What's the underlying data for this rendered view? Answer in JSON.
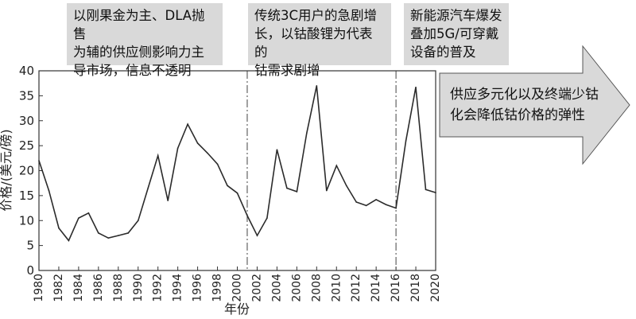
{
  "annotations": {
    "box1": "以刚果金为主、DLA抛售\n为辅的供应侧影响力主\n导市场，信息不透明",
    "box2": "传统3C用户的急剧增\n长，以钴酸锂为代表的\n钴需求剧增",
    "box3": "新能源汽车爆发\n叠加5G/可穿戴\n设备的普及",
    "arrow": "供应多元化以及终端少钴\n化会降低钴价格的弹性"
  },
  "colors": {
    "line": "#2b2b2b",
    "box": "#d9d9d9",
    "arrow_fill": "#d9d9d9"
  },
  "chart_data": {
    "type": "line",
    "xlabel": "年份",
    "ylabel": "价格/(美元/磅)",
    "ylim": [
      0,
      40
    ],
    "xlim": [
      1980,
      2020
    ],
    "y_ticks": [
      "0",
      "5",
      "10",
      "15",
      "20",
      "25",
      "30",
      "35",
      "40"
    ],
    "x_ticks": [
      "1980",
      "1982",
      "1984",
      "1986",
      "1988",
      "1990",
      "1992",
      "1994",
      "1996",
      "1998",
      "2000",
      "2002",
      "2004",
      "2006",
      "2008",
      "2010",
      "2012",
      "2014",
      "2016",
      "2018",
      "2020"
    ],
    "phase_dividers": [
      2001,
      2016
    ],
    "series": [
      {
        "x": [
          1980,
          1981,
          1982,
          1983,
          1984,
          1985,
          1986,
          1987,
          1988,
          1989,
          1990,
          1991,
          1992,
          1993,
          1994,
          1995,
          1996,
          1997,
          1998,
          1999,
          2000,
          2001,
          2002,
          2003,
          2004,
          2005,
          2006,
          2007,
          2008,
          2009,
          2010,
          2011,
          2012,
          2013,
          2014,
          2015,
          2016,
          2017,
          2018,
          2019,
          2020
        ],
        "values": [
          22,
          16,
          8.5,
          6,
          10.5,
          11.5,
          7.5,
          6.5,
          7,
          7.5,
          10,
          16.5,
          23,
          14,
          24.5,
          29.3,
          25.5,
          23.5,
          21.3,
          17,
          15.5,
          11,
          7,
          10.5,
          24.2,
          16.5,
          15.8,
          27.5,
          37,
          16,
          21,
          17,
          13.7,
          13,
          14.2,
          13.2,
          12.5,
          26,
          36.7,
          16.2,
          15.6
        ]
      }
    ]
  }
}
